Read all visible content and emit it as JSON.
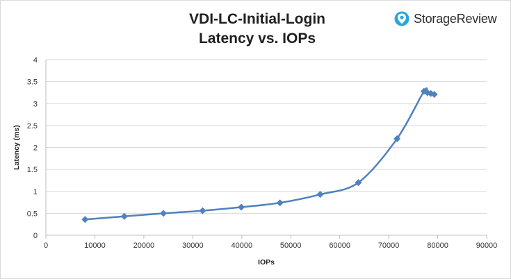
{
  "brand": {
    "name": "StorageReview",
    "accent": "#2aa6de"
  },
  "chart_data": {
    "type": "line",
    "title": "VDI-LC-Initial-Login",
    "subtitle": "Latency vs. IOPs",
    "xlabel": "IOPs",
    "ylabel": "Latency (ms)",
    "xlim": [
      0,
      90000
    ],
    "ylim": [
      0,
      4
    ],
    "xticks": [
      "0",
      "10000",
      "20000",
      "30000",
      "40000",
      "50000",
      "60000",
      "70000",
      "80000",
      "90000"
    ],
    "yticks": [
      "0",
      "0.5",
      "1",
      "1.5",
      "2",
      "2.5",
      "3",
      "3.5",
      "4"
    ],
    "grid": true,
    "legend": "none",
    "series_color": "#4f81bd",
    "series": [
      {
        "x": [
          8000,
          16000,
          24000,
          32000,
          39900,
          47800,
          56000,
          63800,
          71700,
          77200,
          77900,
          78600,
          79300
        ],
        "y": [
          0.36,
          0.43,
          0.5,
          0.56,
          0.64,
          0.74,
          0.93,
          1.2,
          2.2,
          3.28,
          3.25,
          3.23,
          3.21
        ]
      }
    ]
  }
}
